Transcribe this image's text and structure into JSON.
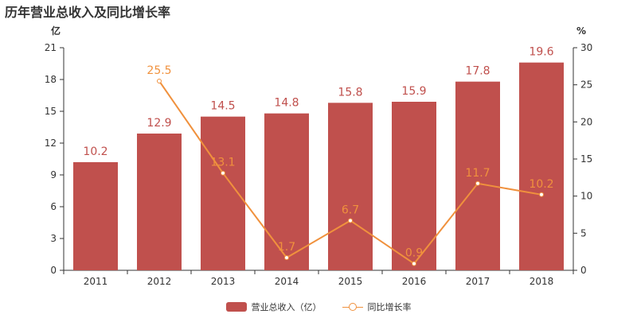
{
  "title": "历年营业总收入及同比增长率",
  "colors": {
    "bar": "#c0504d",
    "line": "#f0913d",
    "axis": "#333333",
    "grid": "#e8e8e8"
  },
  "legend": {
    "bar_label": "营业总收入（亿）",
    "line_label": "同比增长率"
  },
  "chart_data": {
    "type": "bar",
    "title": "历年营业总收入及同比增长率",
    "categories": [
      "2011",
      "2012",
      "2013",
      "2014",
      "2015",
      "2016",
      "2017",
      "2018"
    ],
    "y_unit_left": "亿",
    "y_unit_right": "%",
    "ylim_left": [
      0,
      21
    ],
    "yticks_left": [
      0,
      3,
      6,
      9,
      12,
      15,
      18,
      21
    ],
    "ylim_right": [
      0,
      30
    ],
    "yticks_right": [
      0,
      5,
      10,
      15,
      20,
      25,
      30
    ],
    "grid": false,
    "legend_position": "bottom",
    "series": [
      {
        "name": "营业总收入（亿）",
        "type": "bar",
        "axis": "left",
        "values": [
          10.2,
          12.9,
          14.5,
          14.8,
          15.8,
          15.9,
          17.8,
          19.6
        ]
      },
      {
        "name": "同比增长率",
        "type": "line",
        "axis": "right",
        "values": [
          null,
          25.5,
          13.1,
          1.7,
          6.7,
          0.9,
          11.7,
          10.2
        ]
      }
    ]
  }
}
